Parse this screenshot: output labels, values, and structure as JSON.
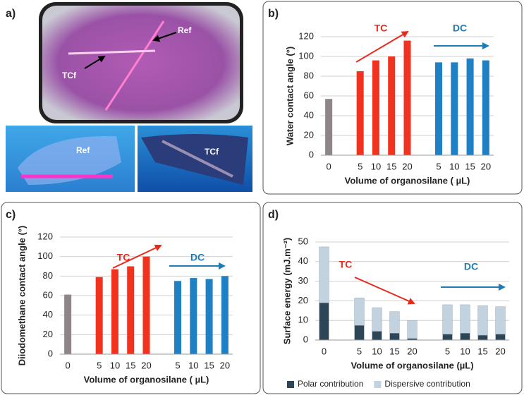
{
  "panel_labels": [
    "a)",
    "b)",
    "c)",
    "d)"
  ],
  "photo_labels": {
    "top_ref": "Ref",
    "top_tcf": "TCf",
    "bottom_left": "Ref",
    "bottom_right": "TCf"
  },
  "chart_data": [
    {
      "type": "bar",
      "xlabel": "Volume of organosilane ( µL)",
      "ylabel": "Water contact angle (°)",
      "categories": [
        "0",
        null,
        "5",
        "10",
        "15",
        "20",
        null,
        "5",
        "10",
        "15",
        "20"
      ],
      "values": [
        57,
        null,
        85,
        96,
        100,
        116,
        null,
        94,
        94,
        98,
        96
      ],
      "colors": [
        "#8e8588",
        null,
        "#f0321e",
        "#f0321e",
        "#f0321e",
        "#f0321e",
        null,
        "#1f80c4",
        "#1f80c4",
        "#1f80c4",
        "#1f80c4"
      ],
      "ylim": [
        0,
        120
      ],
      "yticks": [
        0,
        20,
        40,
        60,
        80,
        100,
        120
      ],
      "grid": true,
      "annotations": [
        {
          "text": "TC",
          "color": "#e8291c"
        },
        {
          "text": "DC",
          "color": "#1f7ab8"
        }
      ]
    },
    {
      "type": "bar",
      "xlabel": "Volume of organosilane ( µL)",
      "ylabel": "Diiodomethane contact angle (°)",
      "categories": [
        "0",
        null,
        "5",
        "10",
        "15",
        "20",
        null,
        "5",
        "10",
        "15",
        "20"
      ],
      "values": [
        61,
        null,
        79,
        87,
        90,
        100,
        null,
        75,
        78,
        77,
        80
      ],
      "colors": [
        "#8e8588",
        null,
        "#f0321e",
        "#f0321e",
        "#f0321e",
        "#f0321e",
        null,
        "#1f80c4",
        "#1f80c4",
        "#1f80c4",
        "#1f80c4"
      ],
      "ylim": [
        0,
        120
      ],
      "yticks": [
        0,
        20,
        40,
        60,
        80,
        100,
        120
      ],
      "grid": true,
      "annotations": [
        {
          "text": "TC",
          "color": "#e8291c"
        },
        {
          "text": "DC",
          "color": "#1f7ab8"
        }
      ]
    },
    {
      "type": "bar",
      "xlabel": "Volume of organosilane (µL)",
      "ylabel": "Surface energy (mJ.m⁻²)",
      "categories": [
        "0",
        null,
        "5",
        "10",
        "15",
        "20",
        null,
        "5",
        "10",
        "15",
        "20"
      ],
      "series": [
        {
          "name": "Polar contribution",
          "color": "#2c4658",
          "values": [
            19,
            null,
            7.5,
            4.5,
            3.5,
            0.8,
            null,
            3,
            3.5,
            2.5,
            3
          ]
        },
        {
          "name": "Dispersive contribution",
          "color": "#c3d2df",
          "values": [
            28.5,
            null,
            14,
            12,
            11,
            9.2,
            null,
            15,
            14.5,
            15,
            14
          ]
        }
      ],
      "ylim": [
        0,
        50
      ],
      "yticks": [
        0,
        10,
        20,
        30,
        40,
        50
      ],
      "grid": true,
      "legend": "bottom",
      "annotations": [
        {
          "text": "TC",
          "color": "#e8291c"
        },
        {
          "text": "DC",
          "color": "#1f7ab8"
        }
      ]
    }
  ]
}
